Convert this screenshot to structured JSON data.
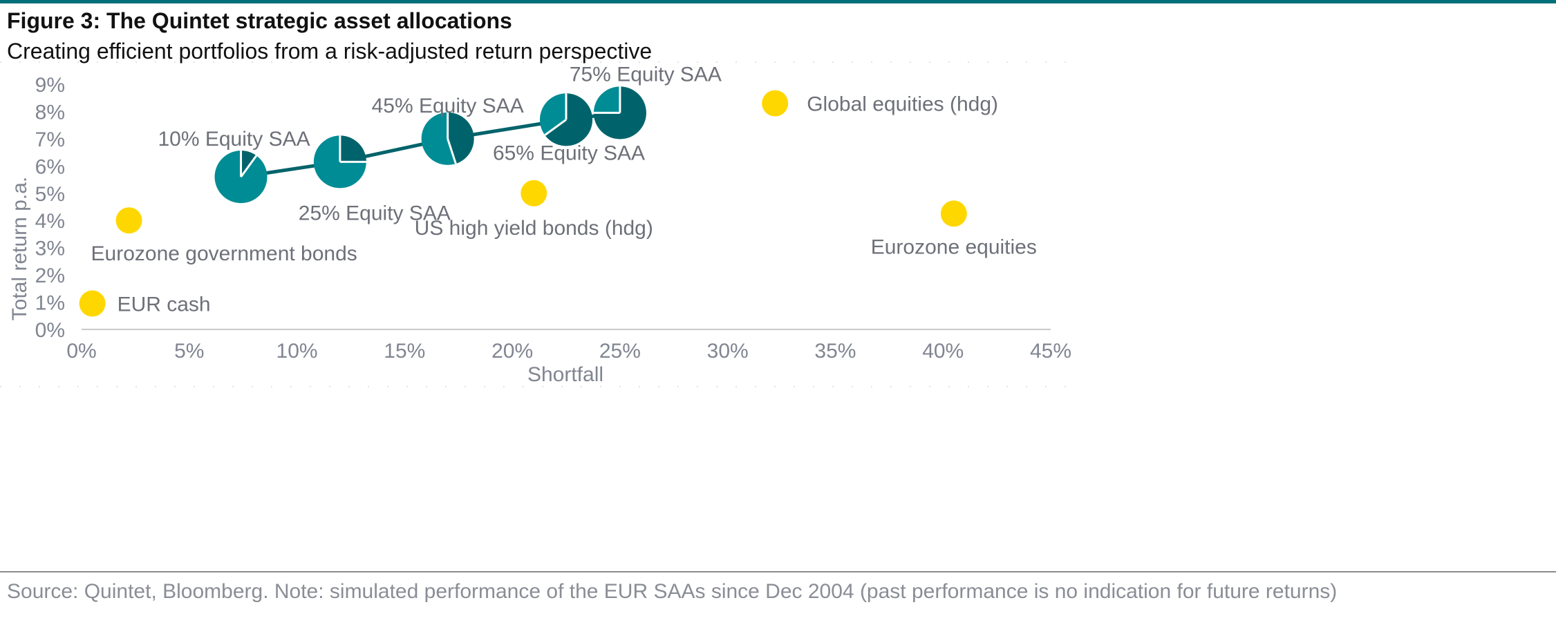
{
  "figure": {
    "title": "Figure 3: The Quintet strategic asset allocations",
    "subtitle": "Creating efficient portfolios from a risk-adjusted return perspective",
    "source": "Source: Quintet, Bloomberg. Note: simulated performance of the EUR SAAs since Dec 2004 (past performance is no indication for future returns)"
  },
  "colors": {
    "rule": "#00707a",
    "asset": "#ffd700",
    "pie_light": "#008c95",
    "pie_dark": "#00636b",
    "line": "#00636b",
    "axis_text": "#808591",
    "label_text": "#6d7078"
  },
  "chart_data": {
    "type": "scatter",
    "xlabel": "Shortfall",
    "ylabel": "Total return p.a.",
    "xlim": [
      0,
      45
    ],
    "ylim": [
      0,
      9
    ],
    "x_ticks": [
      "0%",
      "5%",
      "10%",
      "15%",
      "20%",
      "25%",
      "30%",
      "35%",
      "40%",
      "45%"
    ],
    "y_ticks": [
      "0%",
      "1%",
      "2%",
      "3%",
      "4%",
      "5%",
      "6%",
      "7%",
      "8%",
      "9%"
    ],
    "grid": false,
    "assets": [
      {
        "label": "EUR cash",
        "x": 0.5,
        "y": 0.95
      },
      {
        "label": "Eurozone government bonds",
        "x": 2.2,
        "y": 4.0
      },
      {
        "label": "US high yield bonds (hdg)",
        "x": 21.0,
        "y": 5.0
      },
      {
        "label": "Global equities (hdg)",
        "x": 32.2,
        "y": 8.3
      },
      {
        "label": "Eurozone equities",
        "x": 40.5,
        "y": 4.25
      }
    ],
    "saa": [
      {
        "label": "10% Equity SAA",
        "x": 7.4,
        "y": 5.6,
        "equity_pct": 10
      },
      {
        "label": "25% Equity SAA",
        "x": 12.0,
        "y": 6.15,
        "equity_pct": 25
      },
      {
        "label": "45% Equity SAA",
        "x": 17.0,
        "y": 7.0,
        "equity_pct": 45
      },
      {
        "label": "65% Equity SAA",
        "x": 22.5,
        "y": 7.7,
        "equity_pct": 65
      },
      {
        "label": "75% Equity SAA",
        "x": 25.0,
        "y": 7.95,
        "equity_pct": 75
      }
    ]
  }
}
